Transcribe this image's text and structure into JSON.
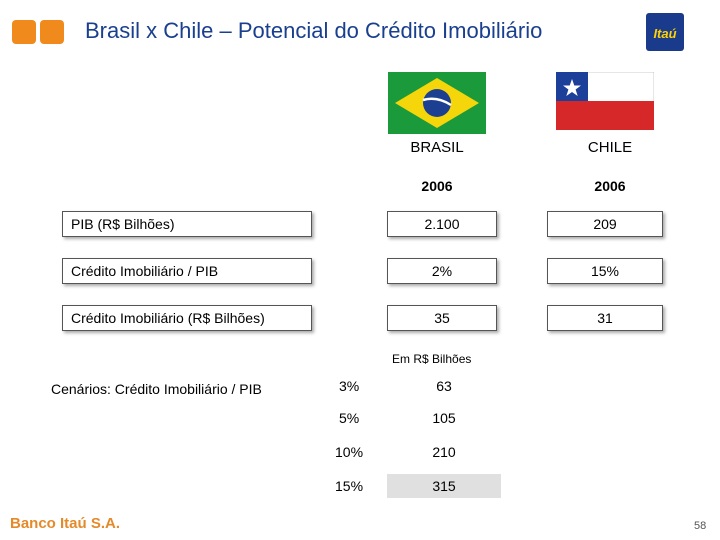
{
  "header": {
    "title": "Brasil x Chile – Potencial do Crédito Imobiliário",
    "brand_logo_text": "Itaú",
    "accent_color": "#f08a1c",
    "title_color": "#1a3f8f"
  },
  "columns": {
    "brasil": {
      "name": "BRASIL",
      "year": "2006",
      "flag": "brazil-flag"
    },
    "chile": {
      "name": "CHILE",
      "year": "2006",
      "flag": "chile-flag"
    }
  },
  "rows": [
    {
      "label": "PIB (R$ Bilhões)",
      "brasil": "2.100",
      "chile": "209"
    },
    {
      "label": "Crédito Imobiliário / PIB",
      "brasil": "2%",
      "chile": "15%"
    },
    {
      "label": "Crédito Imobiliário (R$ Bilhões)",
      "brasil": "35",
      "chile": "31"
    }
  ],
  "scenarios": {
    "label": "Cenários: Crédito Imobiliário / PIB",
    "unit_note": "Em R$ Bilhões",
    "items": [
      {
        "pct": "3%",
        "value": "63"
      },
      {
        "pct": "5%",
        "value": "105"
      },
      {
        "pct": "10%",
        "value": "210"
      },
      {
        "pct": "15%",
        "value": "315"
      }
    ]
  },
  "footer": {
    "company": "Banco Itaú S.A.",
    "page": "58"
  }
}
